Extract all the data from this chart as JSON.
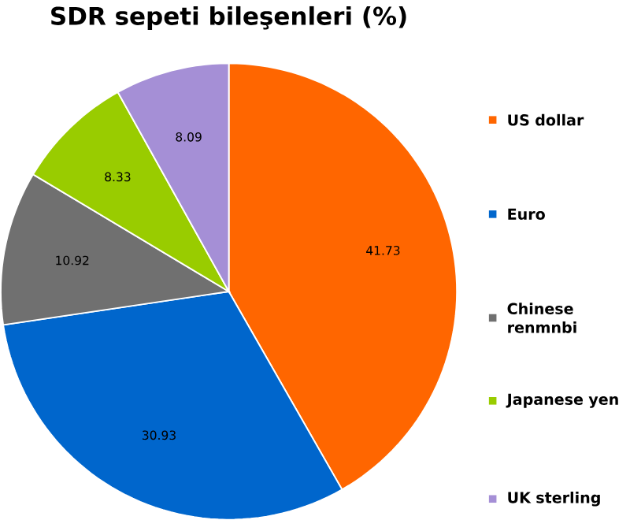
{
  "chart_data": {
    "type": "pie",
    "title": "SDR sepeti bileşenleri (%)",
    "categories": [
      "US dollar",
      "Euro",
      "Chinese renmnbi",
      "Japanese yen",
      "UK sterling"
    ],
    "values": [
      41.73,
      30.93,
      10.92,
      8.33,
      8.09
    ],
    "colors": [
      "#ff6600",
      "#0066cc",
      "#707070",
      "#99cc00",
      "#a58fd6"
    ],
    "data_labels": true,
    "legend": "right"
  }
}
